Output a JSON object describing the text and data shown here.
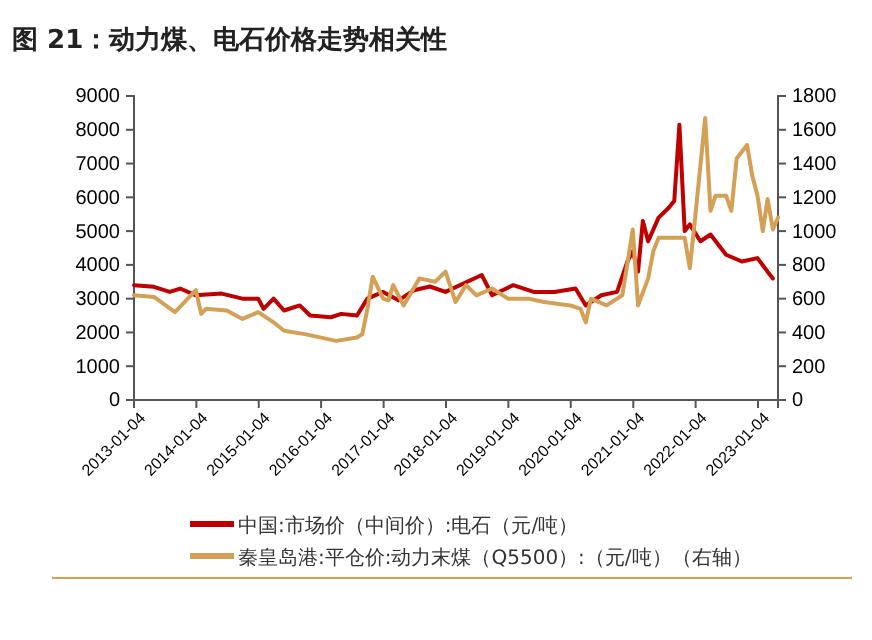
{
  "chart_data": {
    "type": "line",
    "title": "图 21：动力煤、电石价格走势相关性",
    "xlim": [
      "2013-01-04",
      "2023-05-01"
    ],
    "xticks": [
      "2013-01-04",
      "2014-01-04",
      "2015-01-04",
      "2016-01-04",
      "2017-01-04",
      "2018-01-04",
      "2019-01-04",
      "2020-01-04",
      "2021-01-04",
      "2022-01-04",
      "2023-01-04"
    ],
    "ylim": [
      0,
      9000
    ],
    "yticks": [
      0,
      1000,
      2000,
      3000,
      4000,
      5000,
      6000,
      7000,
      8000,
      9000
    ],
    "y2lim": [
      0,
      1800
    ],
    "y2ticks": [
      0,
      200,
      400,
      600,
      800,
      1000,
      1200,
      1400,
      1600,
      1800
    ],
    "grid": false,
    "legend": "bottom",
    "series": [
      {
        "name": "中国:市场价（中间价）:电石（元/吨）",
        "color": "#c00000",
        "x": [
          "2013-01-04",
          "2013-05",
          "2013-08",
          "2013-10",
          "2014-01",
          "2014-06",
          "2014-10",
          "2015-01",
          "2015-02",
          "2015-04",
          "2015-06",
          "2015-09",
          "2015-11",
          "2016-03",
          "2016-05",
          "2016-08",
          "2016-10",
          "2017-01",
          "2017-04",
          "2017-07",
          "2017-10",
          "2018-01",
          "2018-08",
          "2018-10",
          "2019-02",
          "2019-06",
          "2019-10",
          "2020-02",
          "2020-04",
          "2020-07",
          "2020-10",
          "2020-12",
          "2021-01",
          "2021-02",
          "2021-03",
          "2021-04",
          "2021-06",
          "2021-08",
          "2021-09",
          "2021-10",
          "2021-11",
          "2021-12",
          "2022-02",
          "2022-04",
          "2022-07",
          "2022-10",
          "2023-01",
          "2023-03",
          "2023-04"
        ],
        "values": [
          3400,
          3350,
          3200,
          3300,
          3100,
          3150,
          3000,
          3000,
          2700,
          3000,
          2650,
          2800,
          2500,
          2450,
          2550,
          2500,
          3000,
          3200,
          2950,
          3250,
          3360,
          3200,
          3700,
          3100,
          3400,
          3200,
          3200,
          3300,
          2800,
          3100,
          3200,
          4100,
          4400,
          3800,
          5300,
          4700,
          5400,
          5700,
          5900,
          8150,
          5000,
          5200,
          4700,
          4900,
          4300,
          4100,
          4200,
          3800,
          3600
        ]
      },
      {
        "name": "秦皇岛港:平仓价:动力末煤（Q5500）:（元/吨）（右轴）",
        "color": "#d4a055",
        "axis": "y2",
        "x": [
          "2013-01-04",
          "2013-05",
          "2013-09",
          "2014-01",
          "2014-02",
          "2014-03",
          "2014-07",
          "2014-10",
          "2015-01",
          "2015-04",
          "2015-06",
          "2015-10",
          "2016-04",
          "2016-08",
          "2016-09",
          "2016-10",
          "2016-11",
          "2017-01",
          "2017-02",
          "2017-03",
          "2017-05",
          "2017-08",
          "2017-11",
          "2018-01",
          "2018-03",
          "2018-05",
          "2018-07",
          "2018-10",
          "2019-01",
          "2019-05",
          "2019-08",
          "2020-01",
          "2020-03",
          "2020-04",
          "2020-05",
          "2020-08",
          "2020-11",
          "2021-01",
          "2021-02",
          "2021-04",
          "2021-05",
          "2021-06",
          "2021-11",
          "2021-12",
          "2022-01",
          "2022-03",
          "2022-04",
          "2022-05",
          "2022-07",
          "2022-08",
          "2022-09",
          "2022-11",
          "2022-12",
          "2023-01",
          "2023-02",
          "2023-03",
          "2023-04",
          "2023-05"
        ],
        "values": [
          620,
          610,
          520,
          650,
          510,
          540,
          530,
          480,
          520,
          460,
          410,
          390,
          350,
          370,
          390,
          540,
          730,
          600,
          590,
          680,
          560,
          720,
          700,
          760,
          580,
          680,
          620,
          660,
          600,
          600,
          580,
          560,
          540,
          460,
          600,
          560,
          620,
          1010,
          560,
          720,
          880,
          960,
          960,
          780,
          1080,
          1670,
          1120,
          1210,
          1210,
          1120,
          1430,
          1510,
          1330,
          1210,
          1000,
          1190,
          1010,
          1080
        ]
      }
    ]
  }
}
